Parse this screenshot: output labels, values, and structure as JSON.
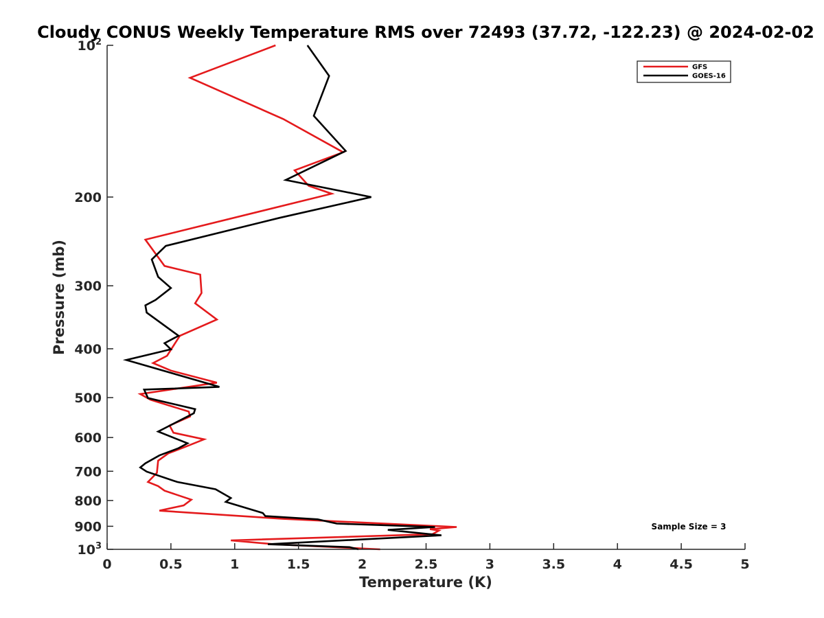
{
  "chart_data": {
    "type": "line",
    "title": "Cloudy CONUS Weekly Temperature RMS over 72493 (37.72, -122.23) @ 2024-02-02",
    "xlabel": "Temperature (K)",
    "ylabel": "Pressure (mb)",
    "xlim": [
      0,
      5
    ],
    "ylim": [
      100,
      1000
    ],
    "y_scale": "log",
    "y_reversed": true,
    "x_ticks": [
      {
        "value": 0,
        "label": "0"
      },
      {
        "value": 0.5,
        "label": "0.5"
      },
      {
        "value": 1,
        "label": "1"
      },
      {
        "value": 1.5,
        "label": "1.5"
      },
      {
        "value": 2,
        "label": "2"
      },
      {
        "value": 2.5,
        "label": "2.5"
      },
      {
        "value": 3,
        "label": "3"
      },
      {
        "value": 3.5,
        "label": "3.5"
      },
      {
        "value": 4,
        "label": "4"
      },
      {
        "value": 4.5,
        "label": "4.5"
      },
      {
        "value": 5,
        "label": "5"
      }
    ],
    "y_ticks": [
      {
        "value": 100,
        "base": "10",
        "exp": "2"
      },
      {
        "value": 200,
        "label": "200"
      },
      {
        "value": 300,
        "label": "300"
      },
      {
        "value": 400,
        "label": "400"
      },
      {
        "value": 500,
        "label": "500"
      },
      {
        "value": 600,
        "label": "600"
      },
      {
        "value": 700,
        "label": "700"
      },
      {
        "value": 800,
        "label": "800"
      },
      {
        "value": 900,
        "label": "900"
      },
      {
        "value": 1000,
        "base": "10",
        "exp": "3"
      }
    ],
    "legend_position": "top-right",
    "grid": false,
    "annotation": "Sample Size = 3",
    "series": [
      {
        "name": "GFS",
        "color": "#e41a1c",
        "points": [
          [
            1.32,
            100
          ],
          [
            0.65,
            116
          ],
          [
            1.38,
            140
          ],
          [
            1.85,
            163
          ],
          [
            1.47,
            177
          ],
          [
            1.58,
            190
          ],
          [
            1.76,
            197
          ],
          [
            0.3,
            243
          ],
          [
            0.45,
            274
          ],
          [
            0.73,
            285
          ],
          [
            0.74,
            310
          ],
          [
            0.69,
            325
          ],
          [
            0.86,
            350
          ],
          [
            0.57,
            377
          ],
          [
            0.47,
            413
          ],
          [
            0.36,
            427
          ],
          [
            0.5,
            442
          ],
          [
            0.86,
            467
          ],
          [
            0.26,
            492
          ],
          [
            0.34,
            505
          ],
          [
            0.64,
            533
          ],
          [
            0.65,
            545
          ],
          [
            0.49,
            568
          ],
          [
            0.52,
            587
          ],
          [
            0.76,
            605
          ],
          [
            0.62,
            625
          ],
          [
            0.48,
            645
          ],
          [
            0.4,
            667
          ],
          [
            0.39,
            705
          ],
          [
            0.32,
            735
          ],
          [
            0.4,
            749
          ],
          [
            0.45,
            765
          ],
          [
            0.66,
            797
          ],
          [
            0.6,
            818
          ],
          [
            0.41,
            838
          ],
          [
            1.38,
            870
          ],
          [
            2.74,
            903
          ],
          [
            2.53,
            912
          ],
          [
            2.6,
            918
          ],
          [
            2.55,
            933
          ],
          [
            0.97,
            960
          ],
          [
            1.31,
            977
          ],
          [
            2.14,
            1000
          ]
        ]
      },
      {
        "name": "GOES-16",
        "color": "#000000",
        "points": [
          [
            1.57,
            100
          ],
          [
            1.74,
            115
          ],
          [
            1.62,
            138
          ],
          [
            1.87,
            162
          ],
          [
            1.4,
            185
          ],
          [
            2.07,
            200
          ],
          [
            1.35,
            220
          ],
          [
            0.46,
            250
          ],
          [
            0.35,
            266
          ],
          [
            0.4,
            288
          ],
          [
            0.5,
            303
          ],
          [
            0.38,
            320
          ],
          [
            0.3,
            328
          ],
          [
            0.31,
            339
          ],
          [
            0.56,
            377
          ],
          [
            0.45,
            390
          ],
          [
            0.5,
            401
          ],
          [
            0.15,
            421
          ],
          [
            0.88,
            476
          ],
          [
            0.29,
            482
          ],
          [
            0.32,
            501
          ],
          [
            0.69,
            527
          ],
          [
            0.68,
            537
          ],
          [
            0.4,
            584
          ],
          [
            0.63,
            616
          ],
          [
            0.56,
            630
          ],
          [
            0.41,
            651
          ],
          [
            0.3,
            675
          ],
          [
            0.26,
            688
          ],
          [
            0.31,
            701
          ],
          [
            0.55,
            735
          ],
          [
            0.85,
            760
          ],
          [
            0.97,
            791
          ],
          [
            0.93,
            805
          ],
          [
            1.22,
            847
          ],
          [
            1.24,
            859
          ],
          [
            1.65,
            872
          ],
          [
            1.8,
            889
          ],
          [
            2.57,
            903
          ],
          [
            2.2,
            915
          ],
          [
            2.62,
            938
          ],
          [
            1.26,
            977
          ],
          [
            1.9,
            990
          ],
          [
            1.97,
            1000
          ]
        ]
      }
    ]
  }
}
